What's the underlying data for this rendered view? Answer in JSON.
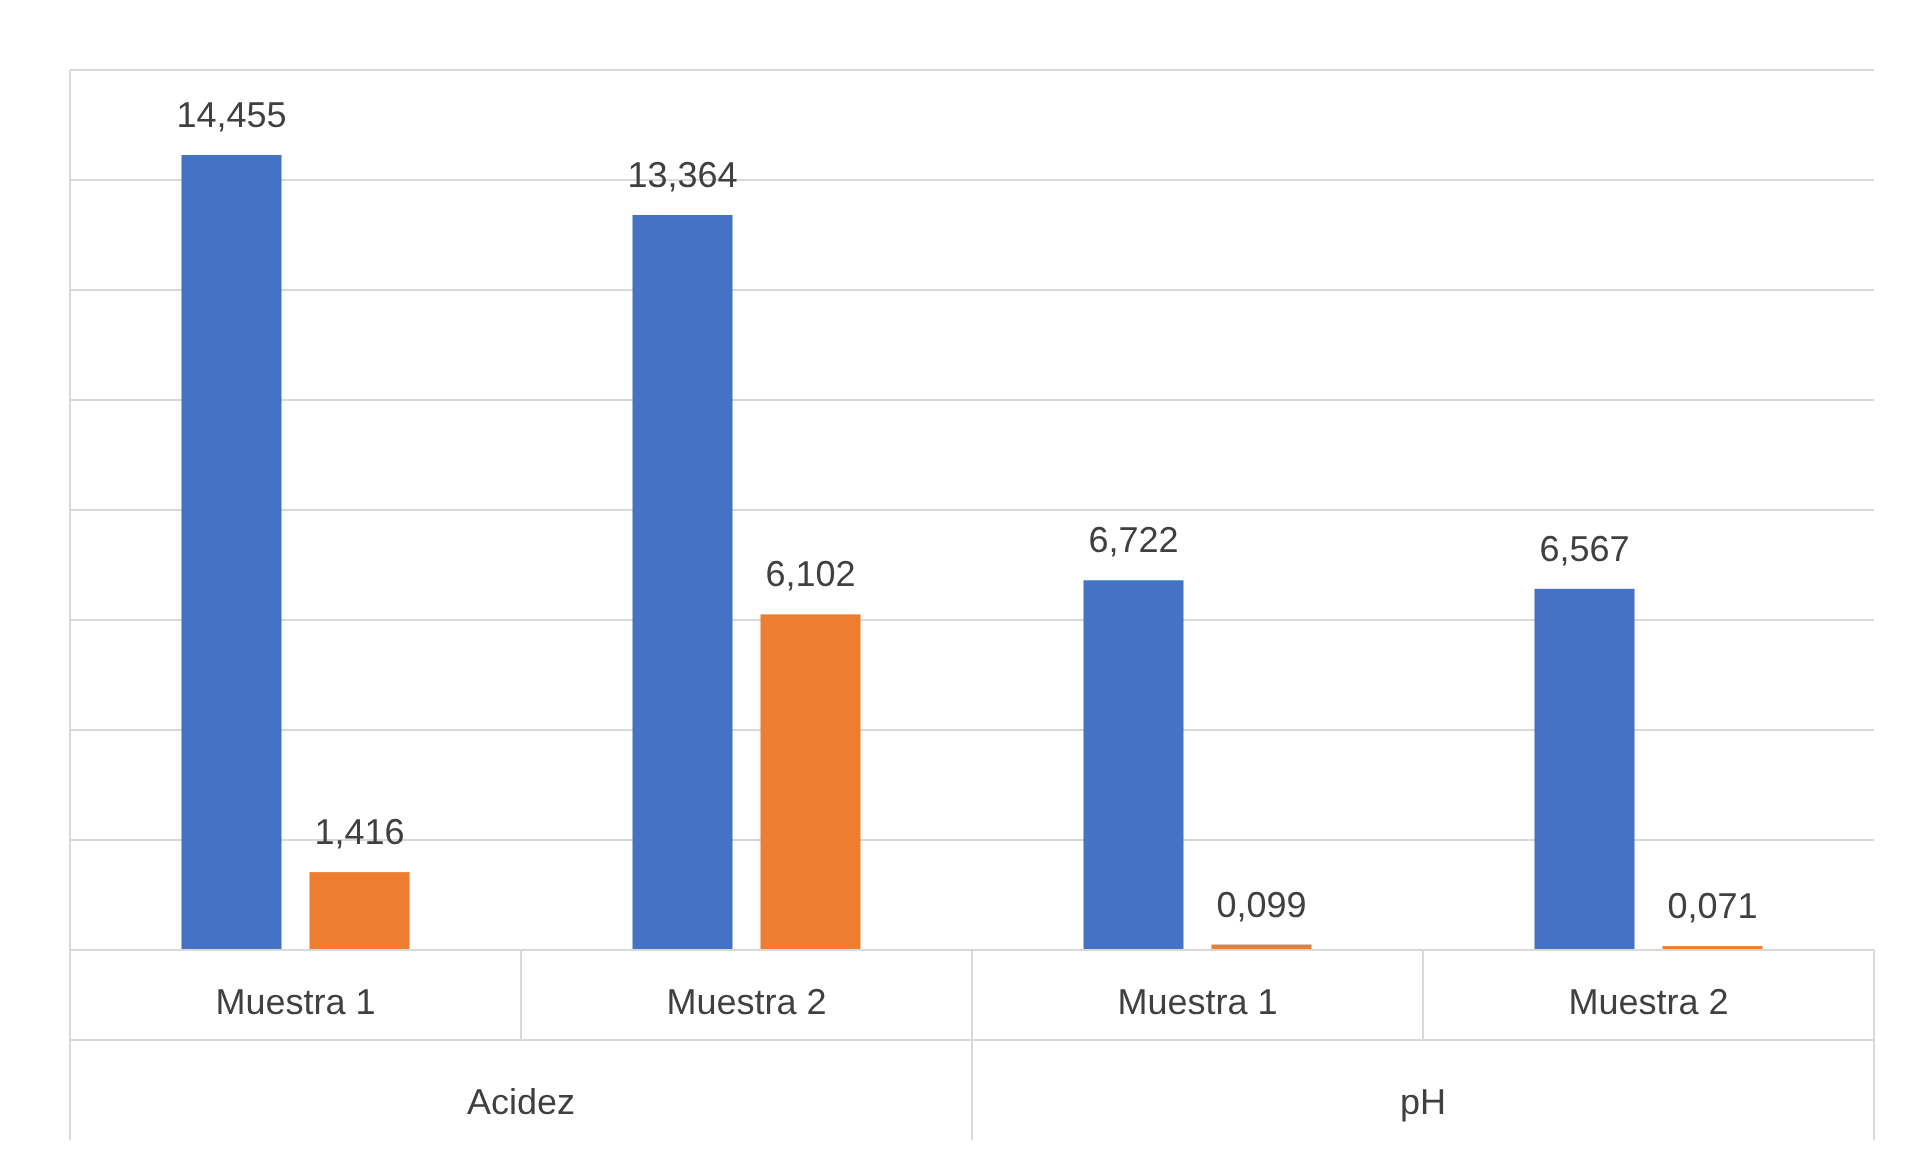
{
  "chart_data": {
    "type": "bar",
    "categories": [
      "Muestra 1",
      "Muestra 2",
      "Muestra 1",
      "Muestra 2"
    ],
    "series": [
      {
        "color": "#4472c4",
        "values": [
          14.455,
          13.364,
          6.722,
          6.567
        ],
        "value_labels": [
          "14,455",
          "13,364",
          "6,722",
          "6,567"
        ]
      },
      {
        "color": "#ed7d31",
        "values": [
          1.416,
          6.102,
          0.099,
          0.071
        ],
        "value_labels": [
          "1,416",
          "6,102",
          "0,099",
          "0,071"
        ]
      }
    ],
    "ylim": [
      0,
      16
    ],
    "yticks": [
      {
        "value": 0,
        "label": null
      },
      {
        "value": 2,
        "label": null
      },
      {
        "value": 4,
        "label": null
      },
      {
        "value": 6,
        "label": null
      },
      {
        "value": 8,
        "label": null
      },
      {
        "value": 10,
        "label": null
      },
      {
        "value": 12,
        "label": null
      },
      {
        "value": 14,
        "label": null
      },
      {
        "value": 16,
        "label": null
      }
    ],
    "grid": "y",
    "tick_labels": "x",
    "annotations": [
      "Acidez",
      "pH"
    ]
  }
}
